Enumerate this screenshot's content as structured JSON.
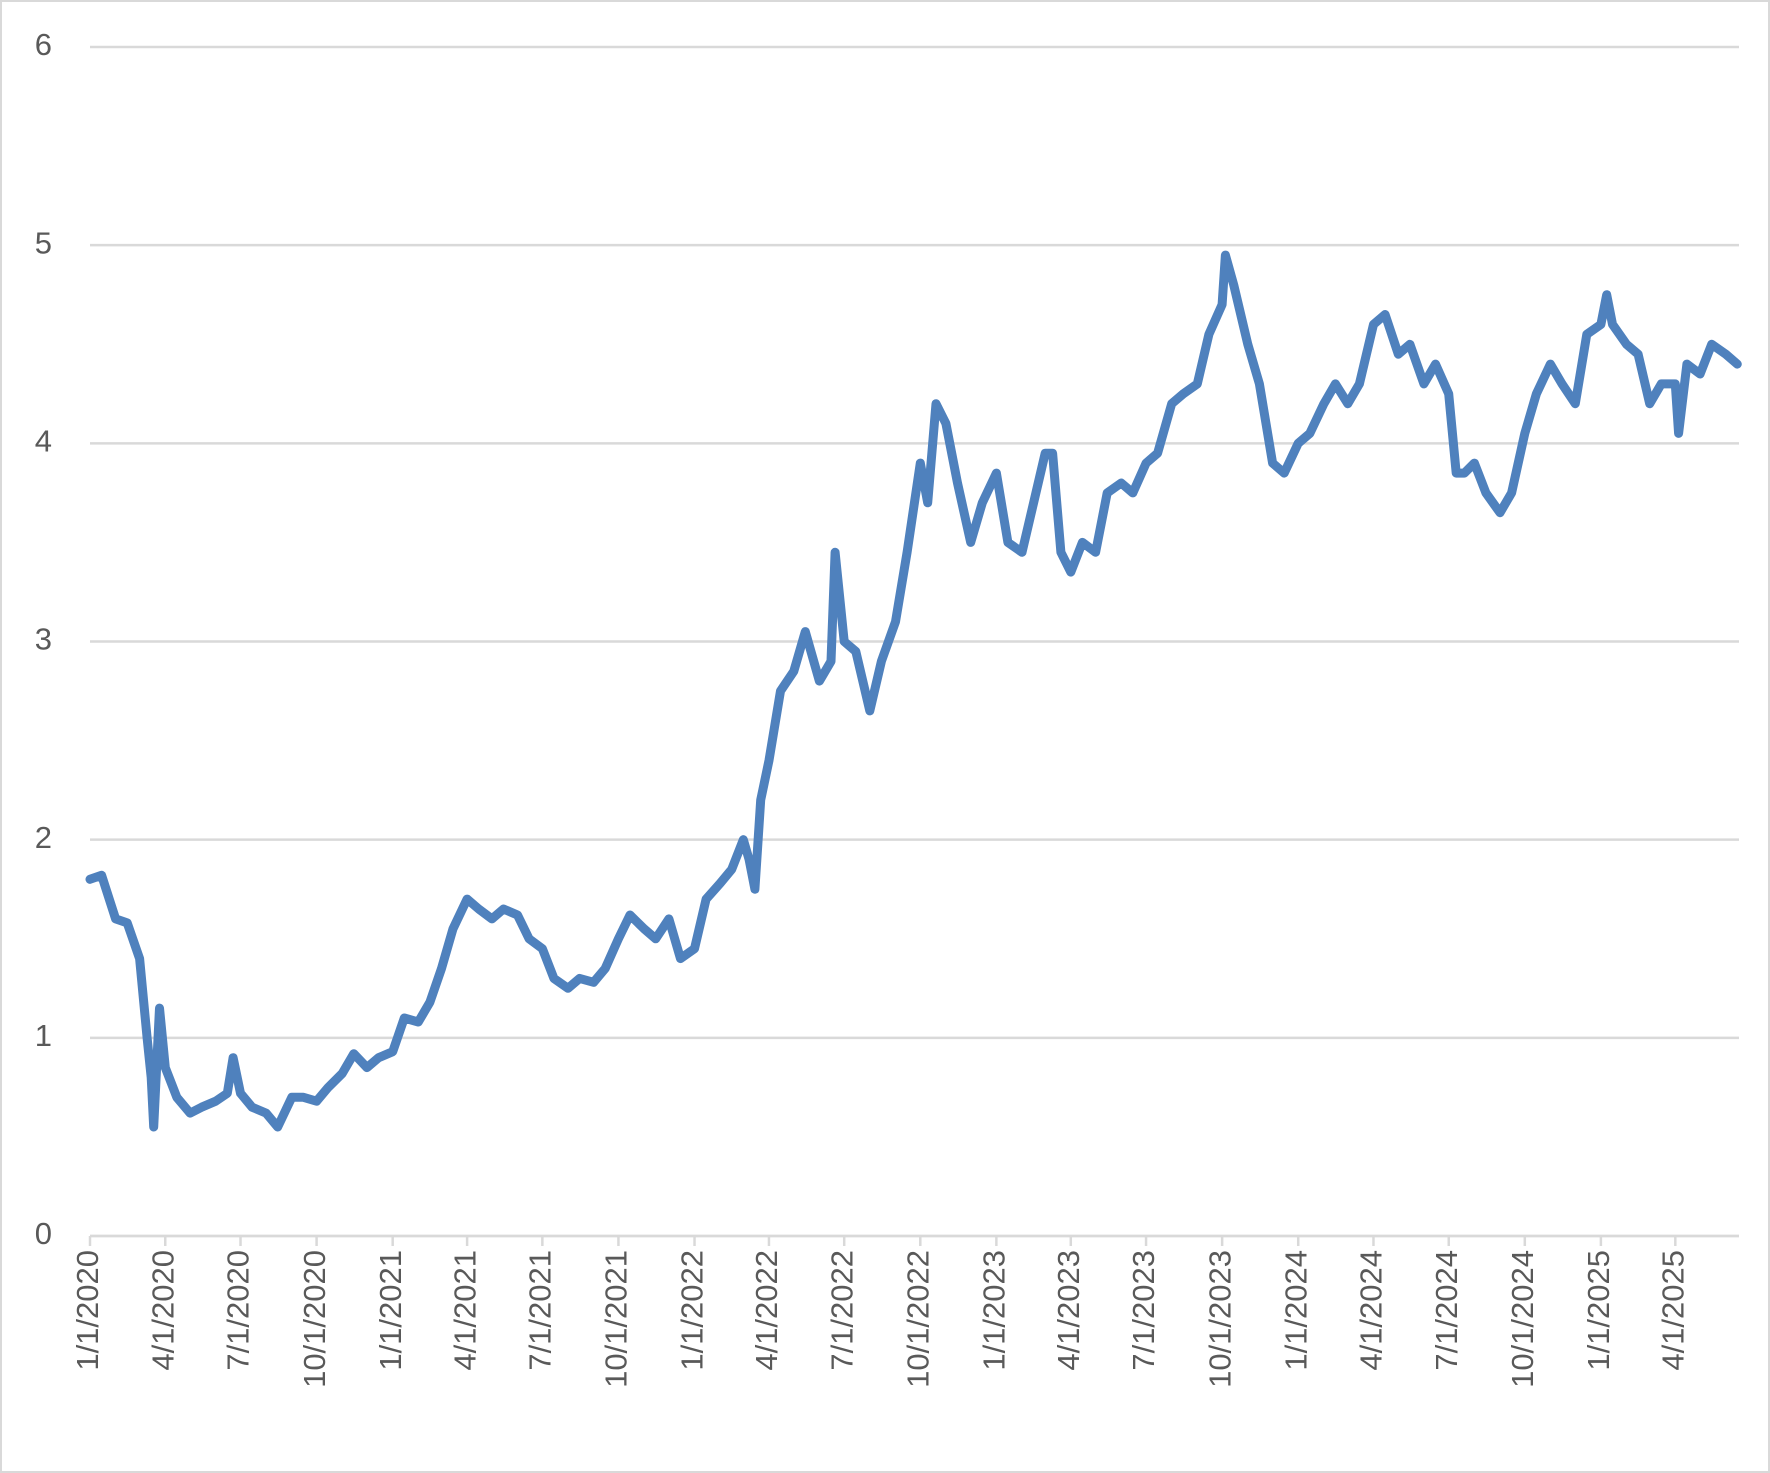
{
  "chart_data": {
    "type": "line",
    "x": [
      "1/1/2020",
      "1/15/2020",
      "2/1/2020",
      "2/15/2020",
      "3/1/2020",
      "3/10/2020",
      "3/15/2020",
      "3/18/2020",
      "3/25/2020",
      "4/1/2020",
      "4/15/2020",
      "5/1/2020",
      "5/15/2020",
      "6/1/2020",
      "6/15/2020",
      "6/22/2020",
      "7/1/2020",
      "7/15/2020",
      "8/1/2020",
      "8/15/2020",
      "9/1/2020",
      "9/15/2020",
      "10/1/2020",
      "10/15/2020",
      "11/1/2020",
      "11/15/2020",
      "12/1/2020",
      "12/15/2020",
      "1/1/2021",
      "1/15/2021",
      "2/1/2021",
      "2/15/2021",
      "3/1/2021",
      "3/15/2021",
      "4/1/2021",
      "4/15/2021",
      "5/1/2021",
      "5/15/2021",
      "6/1/2021",
      "6/15/2021",
      "7/1/2021",
      "7/15/2021",
      "8/1/2021",
      "8/15/2021",
      "9/1/2021",
      "9/15/2021",
      "10/1/2021",
      "10/15/2021",
      "11/1/2021",
      "11/15/2021",
      "12/1/2021",
      "12/15/2021",
      "1/1/2022",
      "1/15/2022",
      "2/1/2022",
      "2/15/2022",
      "3/1/2022",
      "3/8/2022",
      "3/15/2022",
      "3/22/2022",
      "4/1/2022",
      "4/15/2022",
      "5/1/2022",
      "5/15/2022",
      "6/1/2022",
      "6/15/2022",
      "6/20/2022",
      "7/1/2022",
      "7/15/2022",
      "8/1/2022",
      "8/15/2022",
      "9/1/2022",
      "9/15/2022",
      "10/1/2022",
      "10/10/2022",
      "10/20/2022",
      "11/1/2022",
      "11/15/2022",
      "12/1/2022",
      "12/15/2022",
      "1/1/2023",
      "1/15/2023",
      "2/1/2023",
      "2/15/2023",
      "3/1/2023",
      "3/10/2023",
      "3/20/2023",
      "4/1/2023",
      "4/15/2023",
      "5/1/2023",
      "5/15/2023",
      "6/1/2023",
      "6/15/2023",
      "7/1/2023",
      "7/15/2023",
      "8/1/2023",
      "8/15/2023",
      "9/1/2023",
      "9/15/2023",
      "10/1/2023",
      "10/5/2023",
      "10/15/2023",
      "11/1/2023",
      "11/15/2023",
      "12/1/2023",
      "12/15/2023",
      "1/1/2024",
      "1/15/2024",
      "2/1/2024",
      "2/15/2024",
      "3/1/2024",
      "3/15/2024",
      "4/1/2024",
      "4/15/2024",
      "5/1/2024",
      "5/15/2024",
      "6/1/2024",
      "6/15/2024",
      "7/1/2024",
      "7/10/2024",
      "7/20/2024",
      "8/1/2024",
      "8/15/2024",
      "9/1/2024",
      "9/15/2024",
      "10/1/2024",
      "10/15/2024",
      "11/1/2024",
      "11/15/2024",
      "12/1/2024",
      "12/15/2024",
      "1/1/2025",
      "1/8/2025",
      "1/15/2025",
      "2/1/2025",
      "2/15/2025",
      "3/1/2025",
      "3/15/2025",
      "4/1/2025",
      "4/5/2025",
      "4/15/2025",
      "5/1/2025",
      "5/15/2025",
      "6/1/2025",
      "6/15/2025"
    ],
    "series": [
      {
        "color": "#4f81bd",
        "values": [
          1.8,
          1.82,
          1.6,
          1.58,
          1.4,
          1.0,
          0.8,
          0.55,
          1.15,
          0.85,
          0.7,
          0.62,
          0.65,
          0.68,
          0.72,
          0.9,
          0.72,
          0.65,
          0.62,
          0.55,
          0.7,
          0.7,
          0.68,
          0.75,
          0.82,
          0.92,
          0.85,
          0.9,
          0.93,
          1.1,
          1.08,
          1.18,
          1.35,
          1.55,
          1.7,
          1.65,
          1.6,
          1.65,
          1.62,
          1.5,
          1.45,
          1.3,
          1.25,
          1.3,
          1.28,
          1.35,
          1.5,
          1.62,
          1.55,
          1.5,
          1.6,
          1.4,
          1.45,
          1.7,
          1.78,
          1.85,
          2.0,
          1.9,
          1.75,
          2.2,
          2.4,
          2.75,
          2.85,
          3.05,
          2.8,
          2.9,
          3.45,
          3.0,
          2.95,
          2.65,
          2.9,
          3.1,
          3.45,
          3.9,
          3.7,
          4.2,
          4.1,
          3.8,
          3.5,
          3.7,
          3.85,
          3.5,
          3.45,
          3.7,
          3.95,
          3.95,
          3.45,
          3.35,
          3.5,
          3.45,
          3.75,
          3.8,
          3.75,
          3.9,
          3.95,
          4.2,
          4.25,
          4.3,
          4.55,
          4.7,
          4.95,
          4.8,
          4.5,
          4.3,
          3.9,
          3.85,
          4.0,
          4.05,
          4.2,
          4.3,
          4.2,
          4.3,
          4.6,
          4.65,
          4.45,
          4.5,
          4.3,
          4.4,
          4.25,
          3.85,
          3.85,
          3.9,
          3.75,
          3.65,
          3.75,
          4.05,
          4.25,
          4.4,
          4.3,
          4.2,
          4.55,
          4.6,
          4.75,
          4.6,
          4.5,
          4.45,
          4.2,
          4.3,
          4.3,
          4.05,
          4.4,
          4.35,
          4.5,
          4.45,
          4.4
        ]
      }
    ],
    "xlim": [
      "1/1/2020",
      "6/17/2025"
    ],
    "xticks": [
      "1/1/2020",
      "4/1/2020",
      "7/1/2020",
      "10/1/2020",
      "1/1/2021",
      "4/1/2021",
      "7/1/2021",
      "10/1/2021",
      "1/1/2022",
      "4/1/2022",
      "7/1/2022",
      "10/1/2022",
      "1/1/2023",
      "4/1/2023",
      "7/1/2023",
      "10/1/2023",
      "1/1/2024",
      "4/1/2024",
      "7/1/2024",
      "10/1/2024",
      "1/1/2025",
      "4/1/2025"
    ],
    "ylim": [
      0,
      6
    ],
    "yticks": [
      0,
      1,
      2,
      3,
      4,
      5,
      6
    ],
    "grid": true
  }
}
